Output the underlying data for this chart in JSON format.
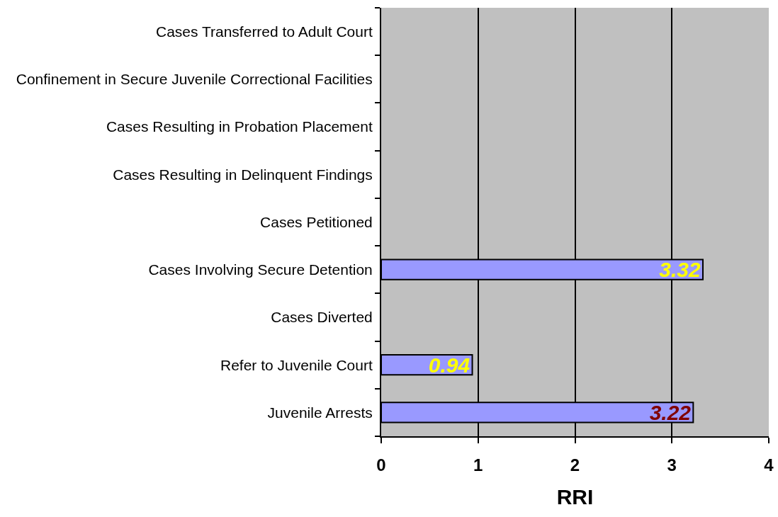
{
  "chart_data": {
    "type": "bar",
    "orientation": "horizontal",
    "xlabel": "RRI",
    "categories": [
      "Cases Transferred to Adult Court",
      "Confinement in Secure Juvenile Correctional Facilities",
      "Cases Resulting in Probation Placement",
      "Cases Resulting in Delinquent Findings",
      "Cases Petitioned",
      "Cases Involving Secure Detention",
      "Cases Diverted",
      "Refer to Juvenile Court",
      "Juvenile Arrests"
    ],
    "values": [
      null,
      null,
      null,
      null,
      null,
      3.32,
      null,
      0.94,
      3.22
    ],
    "color": "#9999ff",
    "xlim": [
      0,
      4
    ],
    "xticks": [
      0,
      1,
      2,
      3,
      4
    ],
    "grid": "x",
    "data_labels": true
  }
}
